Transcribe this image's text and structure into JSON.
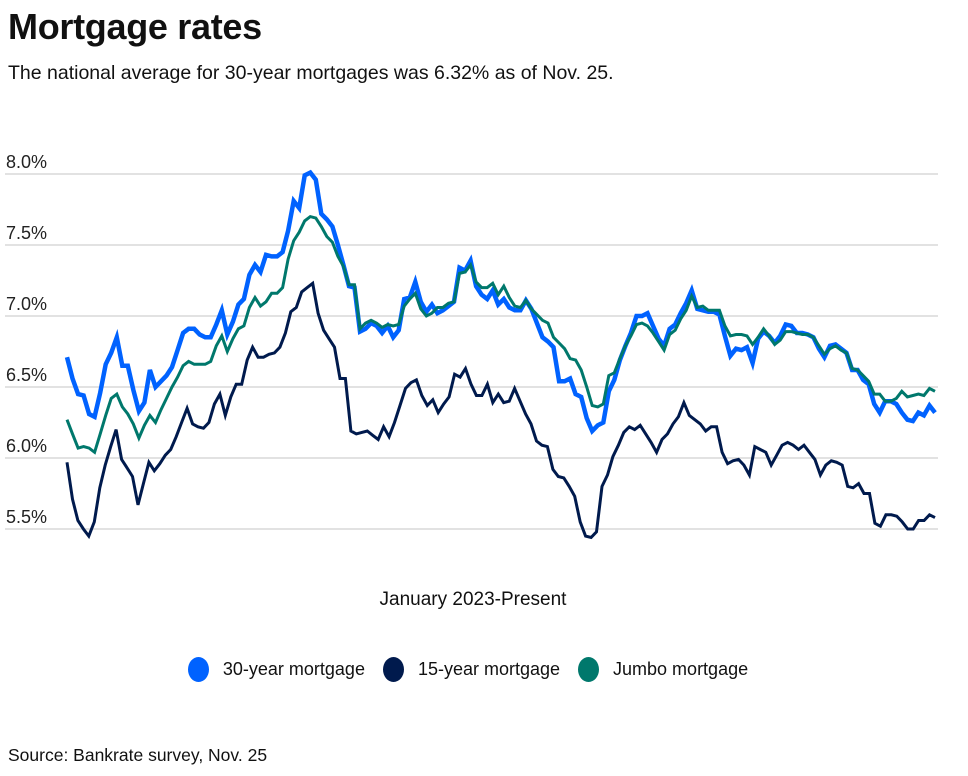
{
  "header": {
    "title": "Mortgage rates",
    "subtitle": "The national average for 30-year mortgages was 6.32% as of Nov. 25."
  },
  "footer": {
    "source": "Source: Bankrate survey, Nov. 25"
  },
  "chart_data": {
    "type": "line",
    "title": "Mortgage rates",
    "subtitle": "The national average for 30-year mortgages was 6.32% as of Nov. 25.",
    "xlabel": "January 2023-Present",
    "ylabel": "",
    "ylim": [
      5.5,
      8.0
    ],
    "yticks": [
      5.5,
      6.0,
      6.5,
      7.0,
      7.5,
      8.0
    ],
    "ytick_labels": [
      "5.5%",
      "6.0%",
      "6.5%",
      "7.0%",
      "7.5%",
      "8.0%"
    ],
    "grid": true,
    "legend_position": "bottom-center",
    "x_description": "Weekly observations, January 2023 to Nov. 25, 2025",
    "series": [
      {
        "name": "30-year mortgage",
        "color": "#0062FF",
        "values": [
          6.71,
          6.56,
          6.45,
          6.44,
          6.31,
          6.29,
          6.46,
          6.66,
          6.74,
          6.85,
          6.65,
          6.65,
          6.48,
          6.33,
          6.39,
          6.62,
          6.5,
          6.54,
          6.58,
          6.64,
          6.76,
          6.88,
          6.91,
          6.91,
          6.87,
          6.85,
          6.85,
          6.94,
          7.04,
          6.87,
          6.96,
          7.08,
          7.12,
          7.29,
          7.36,
          7.31,
          7.43,
          7.42,
          7.42,
          7.45,
          7.6,
          7.81,
          7.76,
          7.99,
          8.01,
          7.96,
          7.72,
          7.68,
          7.63,
          7.5,
          7.36,
          7.21,
          7.2,
          6.89,
          6.91,
          6.95,
          6.93,
          6.88,
          6.93,
          6.85,
          6.9,
          7.12,
          7.13,
          7.24,
          7.1,
          7.03,
          7.08,
          7.02,
          7.04,
          7.07,
          7.1,
          7.34,
          7.32,
          7.39,
          7.21,
          7.15,
          7.12,
          7.18,
          7.08,
          7.12,
          7.06,
          7.04,
          7.04,
          7.11,
          7.05,
          6.95,
          6.85,
          6.82,
          6.78,
          6.54,
          6.54,
          6.56,
          6.45,
          6.43,
          6.28,
          6.19,
          6.23,
          6.25,
          6.47,
          6.55,
          6.69,
          6.79,
          6.88,
          7.0,
          7.0,
          7.02,
          6.93,
          6.84,
          6.79,
          6.91,
          6.94,
          7.02,
          7.09,
          7.18,
          7.05,
          7.04,
          7.03,
          7.03,
          7.01,
          6.86,
          6.72,
          6.77,
          6.76,
          6.78,
          6.67,
          6.84,
          6.89,
          6.86,
          6.81,
          6.86,
          6.94,
          6.93,
          6.88,
          6.88,
          6.87,
          6.85,
          6.77,
          6.71,
          6.79,
          6.8,
          6.77,
          6.74,
          6.62,
          6.62,
          6.55,
          6.52,
          6.38,
          6.32,
          6.4,
          6.4,
          6.38,
          6.32,
          6.27,
          6.26,
          6.32,
          6.3,
          6.37,
          6.32
        ]
      },
      {
        "name": "15-year mortgage",
        "color": "#001A4D",
        "values": [
          5.97,
          5.71,
          5.56,
          5.5,
          5.45,
          5.55,
          5.79,
          5.95,
          6.08,
          6.2,
          5.99,
          5.93,
          5.87,
          5.67,
          5.82,
          5.97,
          5.91,
          5.96,
          6.02,
          6.06,
          6.15,
          6.25,
          6.35,
          6.24,
          6.22,
          6.21,
          6.25,
          6.38,
          6.45,
          6.3,
          6.43,
          6.52,
          6.52,
          6.69,
          6.78,
          6.71,
          6.71,
          6.73,
          6.74,
          6.78,
          6.88,
          7.03,
          7.06,
          7.17,
          7.2,
          7.23,
          7.02,
          6.9,
          6.84,
          6.78,
          6.56,
          6.56,
          6.19,
          6.17,
          6.18,
          6.19,
          6.16,
          6.13,
          6.22,
          6.15,
          6.25,
          6.37,
          6.49,
          6.53,
          6.55,
          6.44,
          6.37,
          6.41,
          6.32,
          6.38,
          6.43,
          6.59,
          6.57,
          6.63,
          6.52,
          6.44,
          6.44,
          6.52,
          6.39,
          6.45,
          6.39,
          6.4,
          6.49,
          6.4,
          6.31,
          6.24,
          6.12,
          6.09,
          6.08,
          5.92,
          5.87,
          5.86,
          5.8,
          5.73,
          5.55,
          5.45,
          5.44,
          5.48,
          5.8,
          5.88,
          6.01,
          6.09,
          6.18,
          6.22,
          6.2,
          6.23,
          6.17,
          6.11,
          6.04,
          6.13,
          6.17,
          6.24,
          6.29,
          6.39,
          6.3,
          6.27,
          6.24,
          6.19,
          6.22,
          6.22,
          6.04,
          5.96,
          5.98,
          5.99,
          5.95,
          5.88,
          6.08,
          6.06,
          6.04,
          5.95,
          6.02,
          6.09,
          6.11,
          6.09,
          6.06,
          6.09,
          6.04,
          5.99,
          5.88,
          5.95,
          5.98,
          5.97,
          5.95,
          5.8,
          5.79,
          5.82,
          5.75,
          5.75,
          5.54,
          5.52,
          5.6,
          5.6,
          5.59,
          5.55,
          5.5,
          5.5,
          5.56,
          5.56,
          5.6,
          5.58
        ]
      },
      {
        "name": "Jumbo mortgage",
        "color": "#00786C",
        "values": [
          6.27,
          6.17,
          6.07,
          6.08,
          6.07,
          6.04,
          6.17,
          6.3,
          6.42,
          6.45,
          6.36,
          6.31,
          6.24,
          6.14,
          6.23,
          6.3,
          6.25,
          6.34,
          6.42,
          6.5,
          6.57,
          6.65,
          6.68,
          6.66,
          6.66,
          6.66,
          6.68,
          6.79,
          6.86,
          6.75,
          6.84,
          6.91,
          6.93,
          7.06,
          7.13,
          7.07,
          7.1,
          7.16,
          7.16,
          7.2,
          7.4,
          7.53,
          7.59,
          7.67,
          7.7,
          7.69,
          7.63,
          7.56,
          7.52,
          7.42,
          7.35,
          7.22,
          7.22,
          6.91,
          6.95,
          6.97,
          6.95,
          6.92,
          6.94,
          6.93,
          6.94,
          7.07,
          7.12,
          7.16,
          7.05,
          7.0,
          7.02,
          7.06,
          7.06,
          7.09,
          7.1,
          7.3,
          7.31,
          7.36,
          7.24,
          7.2,
          7.2,
          7.23,
          7.15,
          7.21,
          7.13,
          7.07,
          7.06,
          7.11,
          7.05,
          7.01,
          6.97,
          6.95,
          6.85,
          6.81,
          6.77,
          6.7,
          6.69,
          6.62,
          6.5,
          6.37,
          6.36,
          6.38,
          6.58,
          6.6,
          6.7,
          6.79,
          6.86,
          6.94,
          6.95,
          6.93,
          6.88,
          6.82,
          6.76,
          6.87,
          6.9,
          6.98,
          7.04,
          7.14,
          7.06,
          7.07,
          7.04,
          7.04,
          7.04,
          6.93,
          6.86,
          6.87,
          6.87,
          6.86,
          6.8,
          6.85,
          6.91,
          6.86,
          6.8,
          6.83,
          6.89,
          6.89,
          6.88,
          6.87,
          6.87,
          6.85,
          6.79,
          6.73,
          6.77,
          6.79,
          6.76,
          6.74,
          6.63,
          6.62,
          6.58,
          6.54,
          6.45,
          6.45,
          6.4,
          6.4,
          6.42,
          6.47,
          6.43,
          6.44,
          6.45,
          6.44,
          6.49,
          6.47
        ]
      }
    ]
  }
}
